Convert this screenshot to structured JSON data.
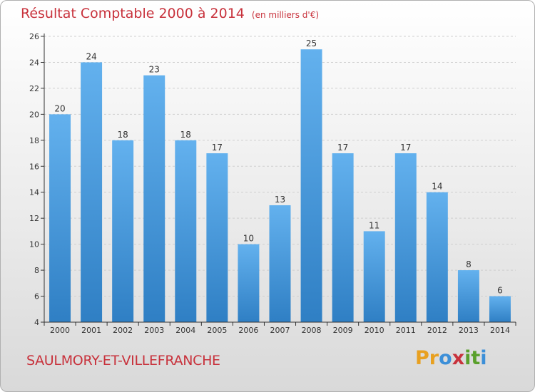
{
  "title": "Résultat Comptable 2000 à 2014",
  "subtitle": "(en milliers d'€)",
  "place": "SAULMORY-ET-VILLEFRANCHE",
  "brand": {
    "letters": [
      "P",
      "r",
      "o",
      "x",
      "i",
      "t",
      "i"
    ],
    "colors": [
      "#e8a020",
      "#e8a020",
      "#3c8fd8",
      "#c8323c",
      "#5aa02c",
      "#5aa02c",
      "#3c8fd8"
    ]
  },
  "colors": {
    "bar_light": "#63b1ee",
    "bar_dark": "#2f7fc4",
    "axis": "#333333",
    "grid": "#cfcfcf",
    "title": "#c8323c"
  },
  "chart_data": {
    "type": "bar",
    "title": "Résultat Comptable 2000 à 2014",
    "subtitle": "(en milliers d'€)",
    "xlabel": "",
    "ylabel": "",
    "categories": [
      "2000",
      "2001",
      "2002",
      "2003",
      "2004",
      "2005",
      "2006",
      "2007",
      "2008",
      "2009",
      "2010",
      "2011",
      "2012",
      "2013",
      "2014"
    ],
    "values": [
      20,
      24,
      18,
      23,
      18,
      17,
      10,
      13,
      25,
      17,
      11,
      17,
      14,
      8,
      6
    ],
    "ylim": [
      4,
      26
    ],
    "yticks": [
      4,
      6,
      8,
      10,
      12,
      14,
      16,
      18,
      20,
      22,
      24,
      26
    ],
    "grid": true
  }
}
